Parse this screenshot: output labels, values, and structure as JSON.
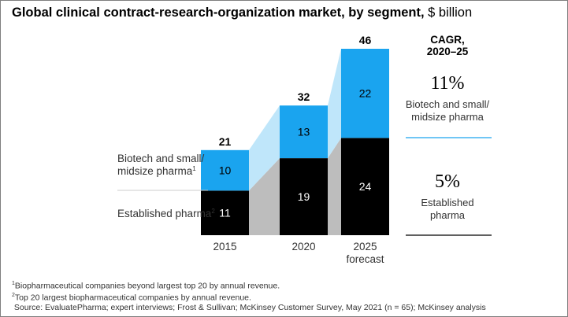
{
  "title": {
    "bold": "Global clinical contract-research-organization market, by segment,",
    "unit": "$ billion"
  },
  "colors": {
    "biotech": "#1aa4ef",
    "established": "#000000",
    "biotech_connector": "#bfe6fa",
    "established_connector": "#bdbdbd"
  },
  "chart_data": {
    "type": "bar",
    "stacked": true,
    "categories": [
      "2015",
      "2020",
      "2025 forecast"
    ],
    "category_lines": [
      [
        "2015"
      ],
      [
        "2020"
      ],
      [
        "2025",
        "forecast"
      ]
    ],
    "series": [
      {
        "name": "Established pharma",
        "footnote": "2",
        "values": [
          11,
          19,
          24
        ]
      },
      {
        "name": "Biotech and small/ midsize pharma",
        "footnote": "1",
        "values": [
          10,
          13,
          22
        ]
      }
    ],
    "totals": [
      21,
      32,
      46
    ],
    "ylim": [
      0,
      46
    ]
  },
  "legend": {
    "biotech_lines": [
      "Biotech and small/",
      "midsize pharma"
    ],
    "biotech_note": "1",
    "established_lines": [
      "Established pharma"
    ],
    "established_note": "2"
  },
  "cagr": {
    "header_lines": [
      "CAGR,",
      "2020–25"
    ],
    "biotech_value": "11%",
    "biotech_label_lines": [
      "Biotech and small/",
      "midsize pharma"
    ],
    "established_value": "5%",
    "established_label_lines": [
      "Established",
      "pharma"
    ]
  },
  "footnotes": {
    "note1_marker": "1",
    "note1": "Biopharmaceutical companies beyond largest top 20 by annual revenue.",
    "note2_marker": "2",
    "note2": "Top 20 largest biopharmaceutical companies by annual revenue.",
    "source": "Source: EvaluatePharma; expert interviews; Frost & Sullivan; McKinsey Customer Survey, May 2021 (n = 65); McKinsey analysis"
  }
}
